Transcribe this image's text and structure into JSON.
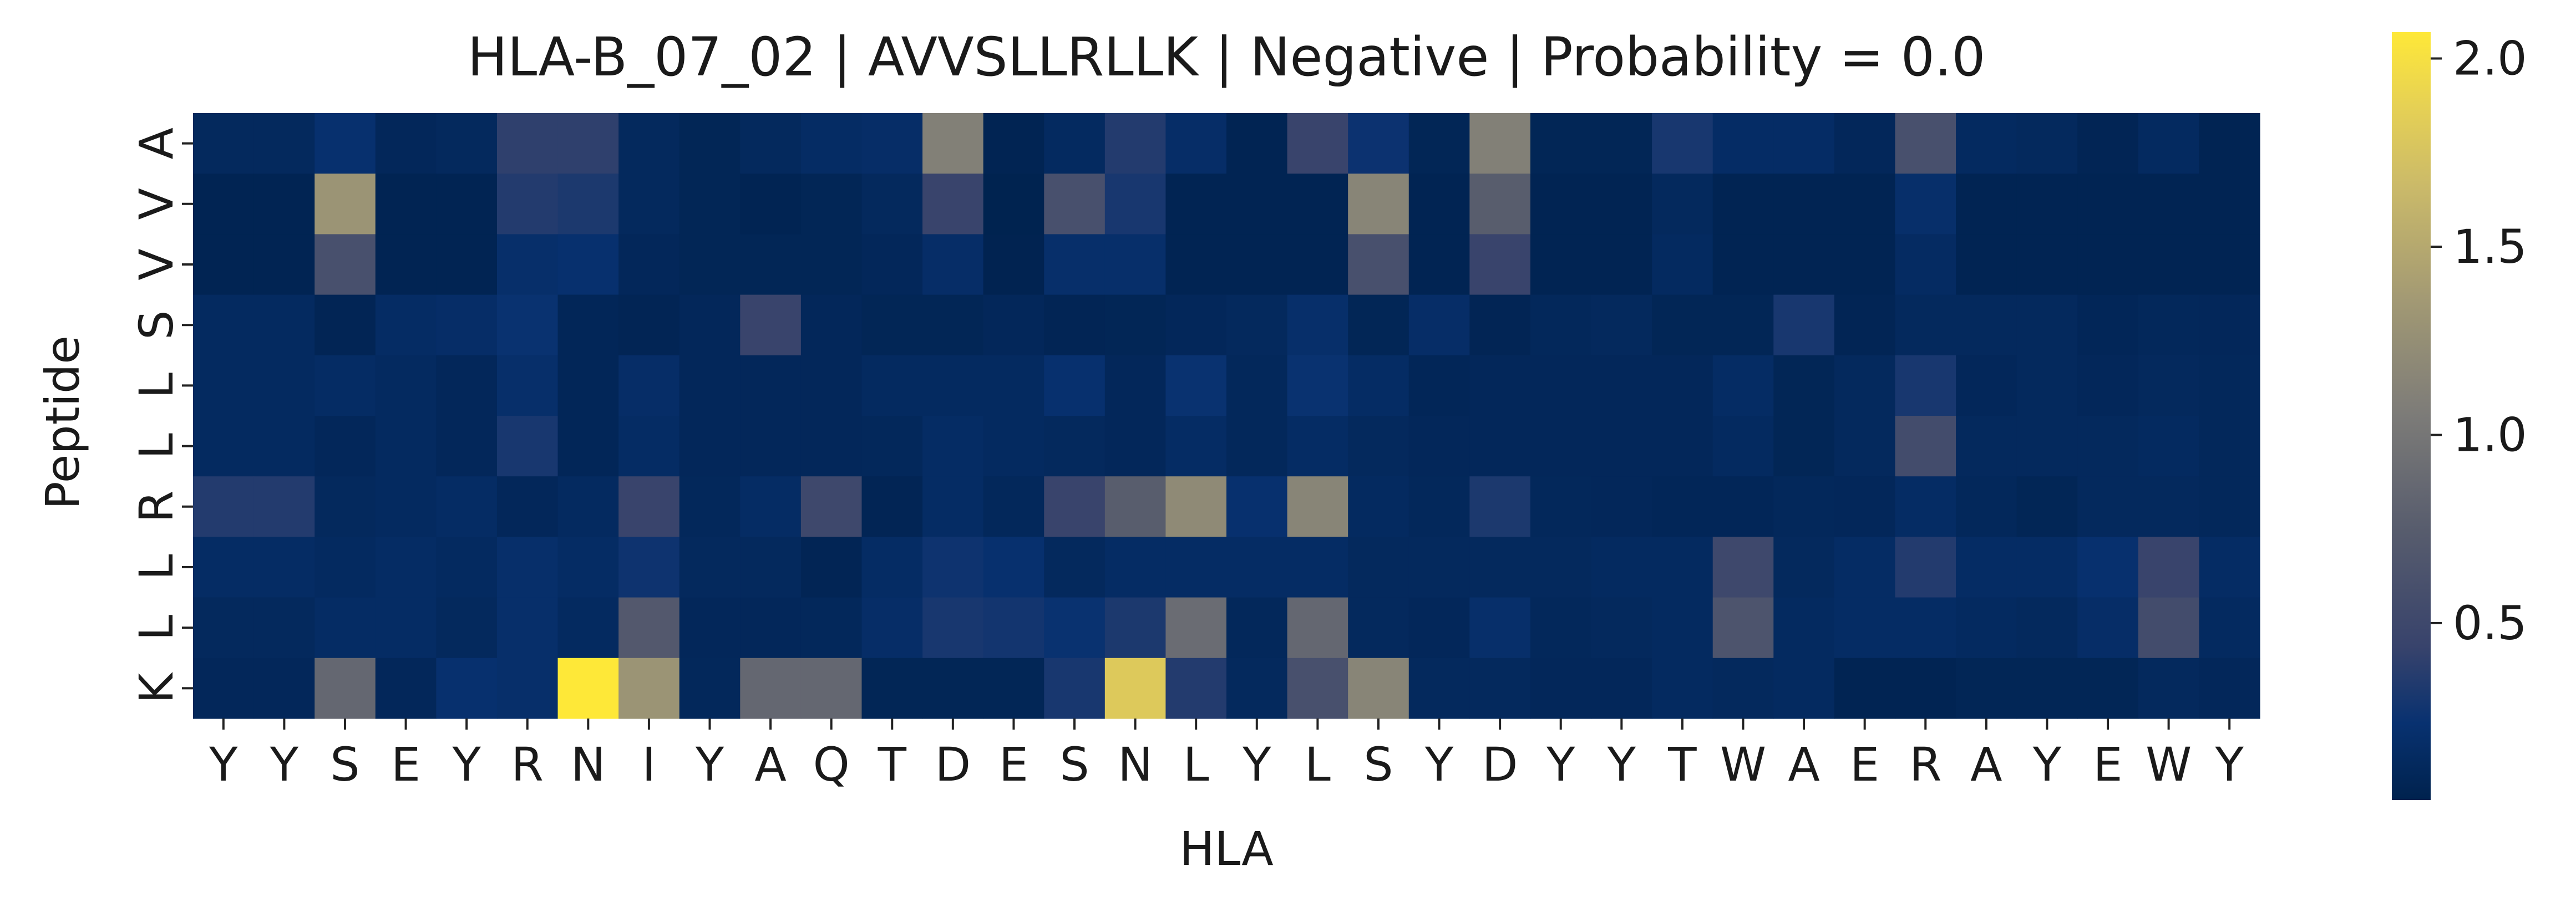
{
  "chart_data": {
    "type": "heatmap",
    "title": "HLA-B_07_02 | AVVSLLRLLK | Negative | Probability = 0.0",
    "xlabel": "HLA",
    "ylabel": "Peptide",
    "x_labels": [
      "Y",
      "Y",
      "S",
      "E",
      "Y",
      "R",
      "N",
      "I",
      "Y",
      "A",
      "Q",
      "T",
      "D",
      "E",
      "S",
      "N",
      "L",
      "Y",
      "L",
      "S",
      "Y",
      "D",
      "Y",
      "Y",
      "T",
      "W",
      "A",
      "E",
      "R",
      "A",
      "Y",
      "E",
      "W",
      "Y"
    ],
    "y_labels": [
      "A",
      "V",
      "V",
      "S",
      "L",
      "L",
      "R",
      "L",
      "L",
      "K"
    ],
    "colorbar": {
      "colormap": "cividis",
      "vmin": 0.03,
      "vmax": 2.07,
      "ticks": [
        0.5,
        1.0,
        1.5,
        2.0
      ],
      "tick_labels": [
        "0.5",
        "1.0",
        "1.5",
        "2.0"
      ]
    },
    "values": [
      [
        0.12,
        0.12,
        0.22,
        0.1,
        0.12,
        0.4,
        0.4,
        0.12,
        0.08,
        0.12,
        0.16,
        0.18,
        1.1,
        0.06,
        0.14,
        0.35,
        0.18,
        0.06,
        0.45,
        0.25,
        0.08,
        1.1,
        0.08,
        0.08,
        0.3,
        0.17,
        0.17,
        0.1,
        0.6,
        0.14,
        0.12,
        0.07,
        0.14,
        0.06
      ],
      [
        0.06,
        0.06,
        1.3,
        0.06,
        0.06,
        0.35,
        0.32,
        0.12,
        0.08,
        0.06,
        0.08,
        0.12,
        0.45,
        0.04,
        0.6,
        0.3,
        0.06,
        0.06,
        0.06,
        1.15,
        0.06,
        0.75,
        0.06,
        0.06,
        0.12,
        0.06,
        0.06,
        0.06,
        0.2,
        0.06,
        0.06,
        0.06,
        0.06,
        0.06
      ],
      [
        0.06,
        0.06,
        0.6,
        0.06,
        0.06,
        0.2,
        0.22,
        0.1,
        0.08,
        0.08,
        0.08,
        0.1,
        0.18,
        0.05,
        0.2,
        0.2,
        0.06,
        0.06,
        0.06,
        0.6,
        0.06,
        0.45,
        0.06,
        0.06,
        0.14,
        0.06,
        0.06,
        0.06,
        0.15,
        0.06,
        0.06,
        0.06,
        0.06,
        0.06
      ],
      [
        0.14,
        0.14,
        0.07,
        0.16,
        0.18,
        0.24,
        0.09,
        0.07,
        0.1,
        0.45,
        0.1,
        0.08,
        0.08,
        0.1,
        0.07,
        0.08,
        0.1,
        0.12,
        0.2,
        0.08,
        0.18,
        0.07,
        0.11,
        0.12,
        0.08,
        0.08,
        0.3,
        0.07,
        0.12,
        0.12,
        0.12,
        0.09,
        0.11,
        0.1
      ],
      [
        0.14,
        0.14,
        0.16,
        0.14,
        0.1,
        0.2,
        0.09,
        0.18,
        0.1,
        0.1,
        0.1,
        0.14,
        0.14,
        0.14,
        0.22,
        0.1,
        0.24,
        0.11,
        0.24,
        0.16,
        0.09,
        0.1,
        0.1,
        0.1,
        0.1,
        0.16,
        0.08,
        0.12,
        0.3,
        0.1,
        0.12,
        0.1,
        0.12,
        0.11
      ],
      [
        0.14,
        0.14,
        0.1,
        0.14,
        0.1,
        0.3,
        0.09,
        0.16,
        0.1,
        0.1,
        0.1,
        0.11,
        0.16,
        0.14,
        0.12,
        0.1,
        0.16,
        0.11,
        0.16,
        0.12,
        0.1,
        0.1,
        0.1,
        0.1,
        0.1,
        0.14,
        0.08,
        0.12,
        0.55,
        0.12,
        0.12,
        0.12,
        0.14,
        0.11
      ],
      [
        0.35,
        0.35,
        0.12,
        0.14,
        0.16,
        0.1,
        0.14,
        0.45,
        0.11,
        0.16,
        0.5,
        0.07,
        0.16,
        0.11,
        0.45,
        0.75,
        1.2,
        0.22,
        1.15,
        0.14,
        0.11,
        0.32,
        0.11,
        0.1,
        0.09,
        0.09,
        0.11,
        0.1,
        0.16,
        0.11,
        0.08,
        0.12,
        0.12,
        0.11
      ],
      [
        0.16,
        0.16,
        0.14,
        0.16,
        0.14,
        0.2,
        0.16,
        0.26,
        0.12,
        0.12,
        0.07,
        0.16,
        0.26,
        0.22,
        0.12,
        0.16,
        0.16,
        0.16,
        0.16,
        0.12,
        0.12,
        0.12,
        0.12,
        0.14,
        0.14,
        0.5,
        0.12,
        0.16,
        0.35,
        0.16,
        0.16,
        0.22,
        0.45,
        0.16
      ],
      [
        0.12,
        0.12,
        0.16,
        0.16,
        0.12,
        0.2,
        0.14,
        0.7,
        0.1,
        0.1,
        0.11,
        0.18,
        0.3,
        0.28,
        0.24,
        0.32,
        0.9,
        0.11,
        0.85,
        0.12,
        0.1,
        0.2,
        0.11,
        0.12,
        0.14,
        0.65,
        0.14,
        0.16,
        0.16,
        0.14,
        0.12,
        0.18,
        0.55,
        0.14
      ],
      [
        0.1,
        0.1,
        0.85,
        0.1,
        0.22,
        0.2,
        2.07,
        1.3,
        0.11,
        0.85,
        0.85,
        0.08,
        0.08,
        0.08,
        0.3,
        1.8,
        0.35,
        0.12,
        0.6,
        1.15,
        0.12,
        0.12,
        0.1,
        0.1,
        0.14,
        0.12,
        0.14,
        0.06,
        0.06,
        0.08,
        0.08,
        0.08,
        0.12,
        0.1
      ]
    ]
  }
}
